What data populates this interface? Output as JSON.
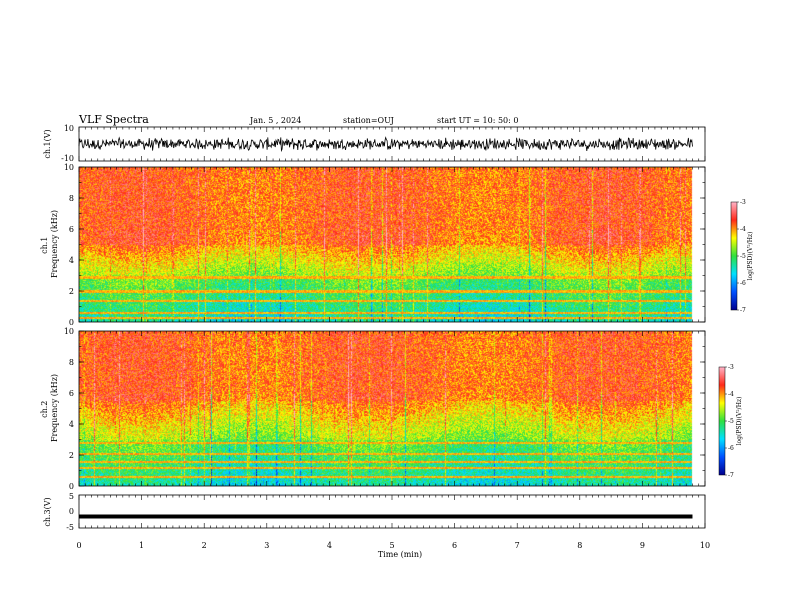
{
  "header": {
    "title": "VLF Spectra",
    "date": "Jan. 5 , 2024",
    "station": "station=OUJ",
    "start": "start UT =   10: 50: 0"
  },
  "chart_data": [
    {
      "type": "line",
      "panel": "ch1_waveform",
      "ylabel": "ch.1(V)",
      "ylim": [
        -10,
        10
      ],
      "yticks": [
        "10",
        "-10"
      ],
      "x_range_min": [
        0,
        9.8
      ],
      "baseline": 0,
      "amplitude_typical": 3
    },
    {
      "type": "heatmap",
      "panel": "ch1_spectrogram",
      "ylabel": "ch.1\nFrequency (kHz)",
      "ylim": [
        0,
        10
      ],
      "yticks": [
        "0",
        "2",
        "4",
        "6",
        "8",
        "10"
      ],
      "xlim": [
        0,
        10
      ],
      "data_until_min": 9.8,
      "colorbar": {
        "label": "log(PSD)(V²/Hz)",
        "range": [
          -7,
          -3
        ],
        "ticks": [
          "-3",
          "-4",
          "-5",
          "-6",
          "-7"
        ]
      },
      "description_bands": {
        "high_psd_above_khz": 5,
        "mid_psd_khz": [
          3,
          5
        ],
        "low_psd_below_khz": 3,
        "lines_khz": [
          0.3,
          0.6,
          1.4,
          2.0,
          2.9
        ]
      }
    },
    {
      "type": "heatmap",
      "panel": "ch2_spectrogram",
      "ylabel": "ch.2\nFrequency (kHz)",
      "ylim": [
        0,
        10
      ],
      "yticks": [
        "0",
        "2",
        "4",
        "6",
        "8",
        "10"
      ],
      "xlim": [
        0,
        10
      ],
      "data_until_min": 9.8,
      "colorbar": {
        "label": "log(PSD)(V²/Hz)",
        "range": [
          -7,
          -3
        ],
        "ticks": [
          "-3",
          "-4",
          "-5",
          "-6",
          "-7"
        ]
      },
      "description_bands": {
        "high_psd_above_khz": 5.5,
        "mid_psd_khz": [
          3,
          5.5
        ],
        "low_psd_below_khz": 3,
        "lines_khz": [
          0.6,
          1.2,
          1.6,
          2.1,
          2.8
        ]
      }
    },
    {
      "type": "line",
      "panel": "ch3_waveform",
      "ylabel": "ch.3(V)",
      "ylim": [
        -5,
        5
      ],
      "yticks": [
        "5",
        "0",
        "-5"
      ],
      "x": [
        0,
        9.8
      ],
      "y": [
        -1.5,
        -1.5
      ]
    }
  ],
  "xaxis": {
    "label": "Time (min)",
    "ticks": [
      "0",
      "1",
      "2",
      "3",
      "4",
      "5",
      "6",
      "7",
      "8",
      "9",
      "10"
    ],
    "xlim": [
      0,
      10
    ]
  },
  "colors": {
    "low": "#00008f",
    "blue": "#0050ff",
    "cyan": "#00e0ff",
    "green": "#30e040",
    "yellow": "#ffff00",
    "red": "#ff2a1a",
    "pink": "#ffb4c8"
  }
}
